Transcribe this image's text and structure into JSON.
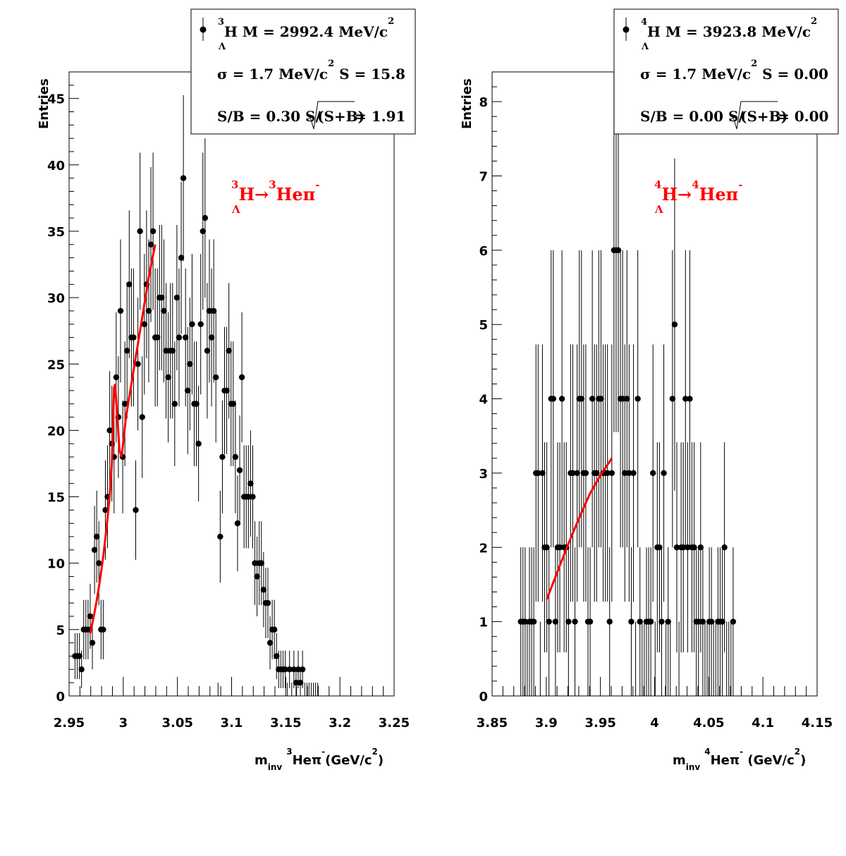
{
  "chart_data": [
    {
      "type": "scatter",
      "ylabel": "Entries",
      "xlabel": {
        "main": "m",
        "sub": "inv",
        "sup1": "3",
        "mid": "Heπ",
        "sup2": "-",
        "unit": "(GeV/c",
        "unit_sup": "2",
        "close": ")"
      },
      "xlim": [
        2.95,
        3.25
      ],
      "ylim": [
        0,
        47
      ],
      "xticks": [
        "2.95",
        "3",
        "3.05",
        "3.1",
        "3.15",
        "3.2",
        "3.25"
      ],
      "yticks": [
        "0",
        "5",
        "10",
        "15",
        "20",
        "25",
        "30",
        "35",
        "40",
        "45"
      ],
      "stats": {
        "row1": {
          "sup": "3",
          "sym": "H",
          "sub": "Λ",
          "text": " M = 2992.4 MeV/c",
          "unit_sup": "2"
        },
        "row2": {
          "text": "σ = 1.7 MeV/c",
          "unit_sup": "2",
          "tail": " S = 15.8"
        },
        "row3": {
          "text": "S/B = 0.30  S/",
          "root": "(S+B)",
          "tail": " = 1.91"
        }
      },
      "annotation": {
        "sup1": "3",
        "sub1": "Λ",
        "part1": "H→",
        "sup2": "3",
        "part2": "Heπ",
        "sup3": "-"
      },
      "x": [
        2.9555,
        2.9575,
        2.9595,
        2.9615,
        2.9635,
        2.9655,
        2.9675,
        2.9695,
        2.9715,
        2.9735,
        2.9755,
        2.9775,
        2.9795,
        2.9815,
        2.9835,
        2.9855,
        2.9875,
        2.9895,
        2.9915,
        2.9935,
        2.9955,
        2.9975,
        2.9995,
        3.0015,
        3.0035,
        3.0055,
        3.0075,
        3.0095,
        3.0115,
        3.0135,
        3.0155,
        3.0175,
        3.0195,
        3.0215,
        3.0235,
        3.0255,
        3.0275,
        3.0295,
        3.0315,
        3.0335,
        3.0355,
        3.0375,
        3.0395,
        3.0415,
        3.0435,
        3.0455,
        3.0475,
        3.0495,
        3.0515,
        3.0535,
        3.0555,
        3.0575,
        3.0595,
        3.0615,
        3.0635,
        3.0655,
        3.0675,
        3.0695,
        3.0715,
        3.0735,
        3.0755,
        3.0775,
        3.0795,
        3.0815,
        3.0835,
        3.0855,
        3.0875,
        3.0895,
        3.0915,
        3.0935,
        3.0955,
        3.0975,
        3.0995,
        3.1015,
        3.1035,
        3.1055,
        3.1075,
        3.1095,
        3.1115,
        3.1135,
        3.1155,
        3.1175,
        3.1195,
        3.1215,
        3.1235,
        3.1255,
        3.1275,
        3.1295,
        3.1315,
        3.1335,
        3.1355,
        3.1375,
        3.1395,
        3.1415,
        3.1435,
        3.1455,
        3.1475,
        3.1495,
        3.1515,
        3.1535,
        3.1555,
        3.1575,
        3.1595,
        3.1615,
        3.1635,
        3.1655,
        3.1675,
        3.1695,
        3.1715,
        3.1735,
        3.1755,
        3.1775,
        3.1795
      ],
      "y": [
        3,
        3,
        3,
        2,
        5,
        5,
        5,
        6,
        4,
        11,
        12,
        10,
        5,
        5,
        14,
        15,
        20,
        19,
        18,
        24,
        21,
        29,
        18,
        22,
        26,
        31,
        27,
        27,
        14,
        25,
        35,
        21,
        28,
        31,
        29,
        34,
        35,
        27,
        27,
        30,
        30,
        29,
        26,
        24,
        26,
        26,
        22,
        30,
        27,
        33,
        39,
        27,
        23,
        25,
        28,
        22,
        22,
        19,
        28,
        35,
        36,
        26,
        29,
        27,
        29,
        24,
        0,
        12,
        18,
        23,
        23,
        26,
        22,
        22,
        18,
        13,
        17,
        24,
        15,
        15,
        15,
        16,
        15,
        10,
        9,
        10,
        10,
        8,
        7,
        7,
        4,
        5,
        5,
        3,
        2,
        2,
        2,
        2,
        0,
        2,
        0,
        2,
        1,
        2,
        1,
        2,
        0,
        0,
        0,
        0,
        0,
        0,
        0
      ],
      "fit": {
        "x": [
          2.9695,
          2.9715,
          2.9735,
          2.9755,
          2.9775,
          2.9795,
          2.9815,
          2.9835,
          2.9855,
          2.9875,
          2.9895,
          2.9915,
          2.9925,
          2.9945,
          2.9965,
          2.9985,
          3.0005,
          3.0025,
          3.0055,
          3.0085,
          3.0115,
          3.0145,
          3.0175,
          3.0205,
          3.0235,
          3.0265,
          3.0295
        ],
        "y": [
          4.7,
          5.5,
          6.3,
          7.2,
          8.2,
          9.3,
          10.5,
          11.9,
          13.4,
          15.1,
          17.5,
          23.2,
          23.5,
          21,
          18.5,
          18,
          19.5,
          21,
          22.5,
          24,
          25.5,
          27,
          28.5,
          30,
          31.5,
          32.8,
          34
        ]
      }
    },
    {
      "type": "scatter",
      "ylabel": "Entries",
      "xlabel": {
        "main": "m",
        "sub": "inv",
        "sup1": "4",
        "mid": "Heπ",
        "sup2": "-",
        "unit": " (GeV/c",
        "unit_sup": "2",
        "close": ")"
      },
      "xlim": [
        3.85,
        4.15
      ],
      "ylim": [
        0,
        8.4
      ],
      "xticks": [
        "3.85",
        "3.9",
        "3.95",
        "4",
        "4.05",
        "4.1",
        "4.15"
      ],
      "yticks": [
        "0",
        "1",
        "2",
        "3",
        "4",
        "5",
        "6",
        "7",
        "8"
      ],
      "stats": {
        "row1": {
          "sup": "4",
          "sym": "H",
          "sub": "Λ",
          "text": " M = 3923.8 MeV/c",
          "unit_sup": "2"
        },
        "row2": {
          "text": "σ = 1.7 MeV/c",
          "unit_sup": "2",
          "tail": " S = 0.00"
        },
        "row3": {
          "text": "S/B = 0.00  S/",
          "root": "(S+B)",
          "tail": " = 0.00"
        }
      },
      "annotation": {
        "sup1": "4",
        "sub1": "Λ",
        "part1": "H→",
        "sup2": "4",
        "part2": "Heπ",
        "sup3": "-"
      },
      "x": [
        3.8765,
        3.8785,
        3.8805,
        3.8825,
        3.8845,
        3.8865,
        3.8885,
        3.8905,
        3.8925,
        3.8945,
        3.8965,
        3.8985,
        3.9005,
        3.9025,
        3.9045,
        3.9065,
        3.9085,
        3.9105,
        3.9125,
        3.9145,
        3.9165,
        3.9185,
        3.9205,
        3.9225,
        3.9245,
        3.9265,
        3.9285,
        3.9305,
        3.9325,
        3.9345,
        3.9365,
        3.9385,
        3.9405,
        3.9425,
        3.9445,
        3.9465,
        3.9485,
        3.9505,
        3.9525,
        3.9545,
        3.9565,
        3.9585,
        3.9605,
        3.9625,
        3.9645,
        3.9665,
        3.9685,
        3.9705,
        3.9725,
        3.9745,
        3.9765,
        3.9785,
        3.9805,
        3.9825,
        3.9845,
        3.9865,
        3.9885,
        3.9905,
        3.9925,
        3.9945,
        3.9965,
        3.9985,
        4.0005,
        4.0025,
        4.0045,
        4.0065,
        4.0085,
        4.0105,
        4.0125,
        4.0145,
        4.0165,
        4.0185,
        4.0205,
        4.0225,
        4.0245,
        4.0265,
        4.0285,
        4.0305,
        4.0325,
        4.0345,
        4.0365,
        4.0385,
        4.0405,
        4.0425,
        4.0445,
        4.0465,
        4.0485,
        4.0505,
        4.0525,
        4.0545,
        4.0565,
        4.0585,
        4.0605,
        4.0625,
        4.0645,
        4.0665,
        4.0685,
        4.0705,
        4.0725
      ],
      "y": [
        1,
        1,
        1,
        0,
        1,
        1,
        1,
        3,
        3,
        0,
        3,
        2,
        2,
        1,
        4,
        4,
        1,
        2,
        2,
        4,
        2,
        2,
        1,
        3,
        3,
        1,
        3,
        4,
        4,
        3,
        3,
        1,
        1,
        4,
        3,
        3,
        4,
        4,
        3,
        3,
        3,
        1,
        3,
        6,
        6,
        6,
        4,
        4,
        3,
        4,
        3,
        1,
        3,
        0,
        4,
        1,
        0,
        0,
        1,
        1,
        1,
        3,
        0,
        2,
        2,
        1,
        3,
        0,
        1,
        0,
        4,
        5,
        2,
        0,
        2,
        2,
        4,
        2,
        4,
        2,
        2,
        1,
        1,
        2,
        1,
        0,
        0,
        1,
        1,
        0,
        0,
        1,
        1,
        1,
        2,
        0,
        0,
        0,
        1
      ],
      "fit": {
        "x": [
          3.9005,
          3.9105,
          3.9205,
          3.9305,
          3.9405,
          3.9505,
          3.9605
        ],
        "y": [
          1.3,
          1.68,
          2.05,
          2.4,
          2.73,
          2.98,
          3.2
        ]
      }
    }
  ]
}
